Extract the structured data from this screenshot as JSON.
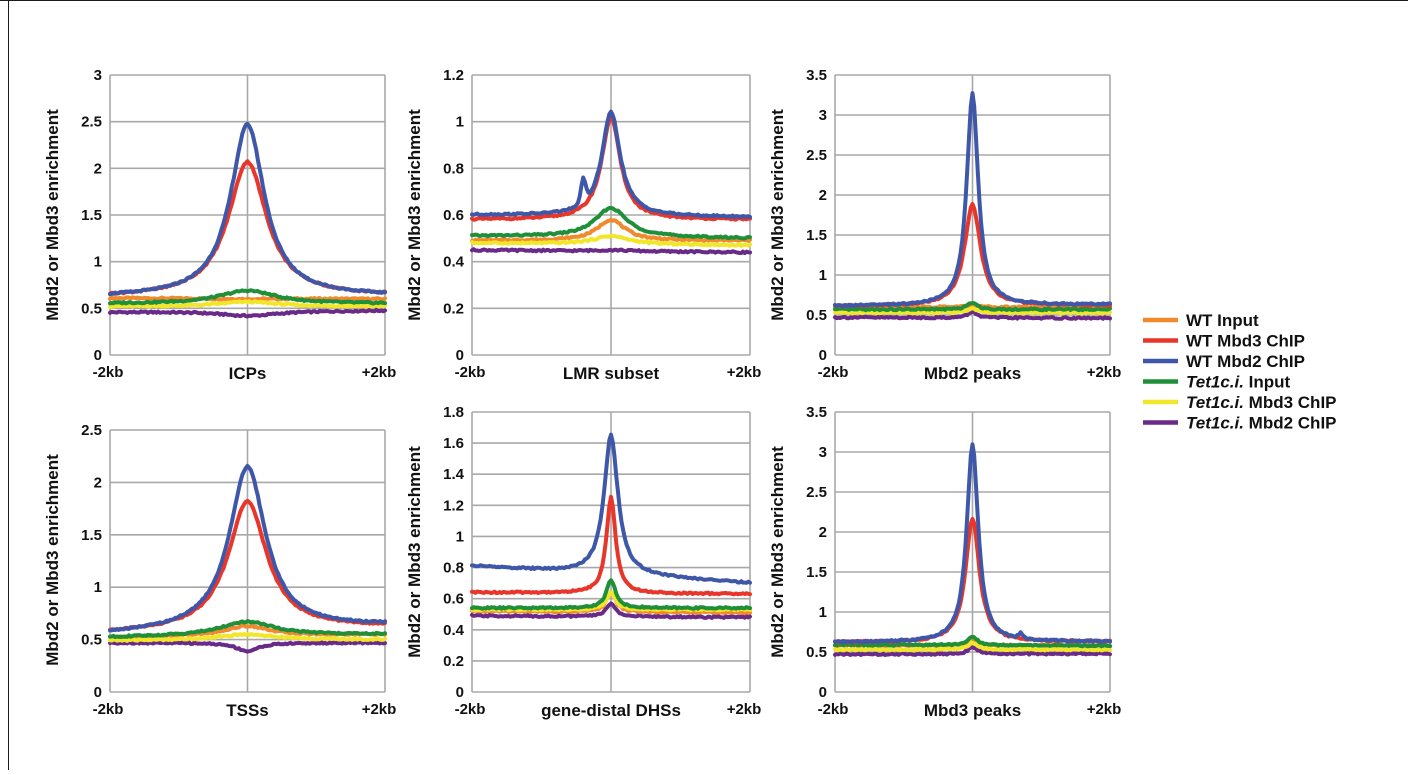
{
  "colors": {
    "wt_input": "#f08a2c",
    "wt_mbd3": "#e8362a",
    "wt_mbd2": "#3f57a8",
    "tet_input": "#1f8f3a",
    "tet_mbd3": "#f2e62a",
    "tet_mbd2": "#6a2a88",
    "grid": "#a8a8a8"
  },
  "legend": [
    {
      "key": "wt_input",
      "prefix": "",
      "italic": "",
      "rest": "WT Input"
    },
    {
      "key": "wt_mbd3",
      "prefix": "",
      "italic": "",
      "rest": "WT Mbd3 ChIP"
    },
    {
      "key": "wt_mbd2",
      "prefix": "",
      "italic": "",
      "rest": "WT Mbd2 ChIP"
    },
    {
      "key": "tet_input",
      "prefix": "",
      "italic": "Tet1c.i.",
      "rest": " Input"
    },
    {
      "key": "tet_mbd3",
      "prefix": "",
      "italic": "Tet1c.i.",
      "rest": " Mbd3 ChIP"
    },
    {
      "key": "tet_mbd2",
      "prefix": "",
      "italic": "Tet1c.i.",
      "rest": " Mbd2 ChIP"
    }
  ],
  "chart_data": [
    {
      "type": "line",
      "xlabel": "ICPs",
      "ylabel": "Mbd2 or Mbd3 enrichment",
      "x_left": "-2kb",
      "x_right": "+2kb",
      "ylim": [
        0,
        3
      ],
      "yticks": [
        "0",
        "0.5",
        "1",
        "1.5",
        "2",
        "2.5",
        "3"
      ],
      "grid": true,
      "series": {
        "wt_input": {
          "base": 0.6,
          "baseL": 0.61,
          "baseR": 0.6,
          "peak": 0.6,
          "width": 0.2
        },
        "wt_mbd3": {
          "baseL": 0.62,
          "baseR": 0.63,
          "peak": 2.07,
          "width": 0.17
        },
        "wt_mbd2": {
          "baseL": 0.62,
          "baseR": 0.63,
          "peak": 2.47,
          "width": 0.15
        },
        "tet_input": {
          "baseL": 0.55,
          "baseR": 0.55,
          "peak": 0.69,
          "width": 0.25
        },
        "tet_mbd3": {
          "baseL": 0.52,
          "baseR": 0.52,
          "peak": 0.57,
          "width": 0.25
        },
        "tet_mbd2": {
          "baseL": 0.46,
          "baseR": 0.48,
          "peak": 0.42,
          "width": 0.25
        }
      }
    },
    {
      "type": "line",
      "xlabel": "LMR subset",
      "ylabel": "Mbd2 or Mbd3 enrichment",
      "x_left": "-2kb",
      "x_right": "+2kb",
      "ylim": [
        0,
        1.2
      ],
      "yticks": [
        "0",
        "0.2",
        "0.4",
        "0.6",
        "0.8",
        "1",
        "1.2"
      ],
      "grid": true,
      "series": {
        "wt_input": {
          "baseL": 0.49,
          "baseR": 0.49,
          "peak": 0.58,
          "width": 0.12
        },
        "wt_mbd3": {
          "baseL": 0.58,
          "baseR": 0.58,
          "peak": 1.02,
          "width": 0.08
        },
        "wt_mbd2": {
          "baseL": 0.6,
          "baseR": 0.59,
          "peak": 1.04,
          "width": 0.08,
          "bump": [
            -0.2,
            0.1
          ]
        },
        "tet_input": {
          "baseL": 0.51,
          "baseR": 0.5,
          "peak": 0.63,
          "width": 0.14
        },
        "tet_mbd3": {
          "baseL": 0.48,
          "baseR": 0.47,
          "peak": 0.51,
          "width": 0.15
        },
        "tet_mbd2": {
          "baseL": 0.45,
          "baseR": 0.44,
          "peak": 0.45,
          "width": 0.15
        }
      }
    },
    {
      "type": "line",
      "xlabel": "Mbd2 peaks",
      "ylabel": "Mbd2 or Mbd3 enrichment",
      "x_left": "-2kb",
      "x_right": "+2kb",
      "ylim": [
        0,
        3.5
      ],
      "yticks": [
        "0",
        "0.5",
        "1",
        "1.5",
        "2",
        "2.5",
        "3",
        "3.5"
      ],
      "grid": true,
      "series": {
        "wt_input": {
          "baseL": 0.6,
          "baseR": 0.6,
          "peak": 0.62,
          "width": 0.05
        },
        "wt_mbd3": {
          "baseL": 0.61,
          "baseR": 0.62,
          "peak": 1.88,
          "width": 0.07
        },
        "wt_mbd2": {
          "baseL": 0.61,
          "baseR": 0.63,
          "peak": 3.27,
          "width": 0.05
        },
        "tet_input": {
          "baseL": 0.57,
          "baseR": 0.57,
          "peak": 0.66,
          "width": 0.04
        },
        "tet_mbd3": {
          "baseL": 0.53,
          "baseR": 0.53,
          "peak": 0.58,
          "width": 0.04
        },
        "tet_mbd2": {
          "baseL": 0.47,
          "baseR": 0.46,
          "peak": 0.54,
          "width": 0.04
        }
      }
    },
    {
      "type": "line",
      "xlabel": "TSSs",
      "ylabel": "Mbd2 or Mbd3 enrichment",
      "x_left": "-2kb",
      "x_right": "+2kb",
      "ylim": [
        0,
        2.5
      ],
      "yticks": [
        "0",
        "0.5",
        "1",
        "1.5",
        "2",
        "2.5"
      ],
      "grid": true,
      "series": {
        "wt_input": {
          "baseL": 0.52,
          "baseR": 0.55,
          "peak": 0.63,
          "width": 0.2
        },
        "wt_mbd3": {
          "baseL": 0.56,
          "baseR": 0.62,
          "peak": 1.82,
          "width": 0.17
        },
        "wt_mbd2": {
          "baseL": 0.55,
          "baseR": 0.63,
          "peak": 2.15,
          "width": 0.16
        },
        "tet_input": {
          "baseL": 0.52,
          "baseR": 0.55,
          "peak": 0.67,
          "width": 0.25
        },
        "tet_mbd3": {
          "baseL": 0.49,
          "baseR": 0.5,
          "peak": 0.55,
          "width": 0.25
        },
        "tet_mbd2": {
          "baseL": 0.47,
          "baseR": 0.47,
          "peak": 0.39,
          "width": 0.1
        }
      }
    },
    {
      "type": "line",
      "xlabel": "gene-distal DHSs",
      "ylabel": "Mbd2 or Mbd3 enrichment",
      "x_left": "-2kb",
      "x_right": "+2kb",
      "ylim": [
        0,
        1.8
      ],
      "yticks": [
        "0",
        "0.2",
        "0.4",
        "0.6",
        "0.8",
        "1",
        "1.2",
        "1.4",
        "1.6",
        "1.8"
      ],
      "grid": true,
      "series": {
        "wt_input": {
          "baseL": 0.52,
          "baseR": 0.51,
          "peak": 0.64,
          "width": 0.04
        },
        "wt_mbd3": {
          "baseL": 0.64,
          "baseR": 0.63,
          "peak": 1.25,
          "width": 0.04
        },
        "wt_mbd2": {
          "baseL": 0.81,
          "baseR": 0.7,
          "peak": 1.65,
          "width": 0.06
        },
        "tet_input": {
          "baseL": 0.54,
          "baseR": 0.54,
          "peak": 0.72,
          "width": 0.04
        },
        "tet_mbd3": {
          "baseL": 0.53,
          "baseR": 0.53,
          "peak": 0.64,
          "width": 0.04
        },
        "tet_mbd2": {
          "baseL": 0.49,
          "baseR": 0.48,
          "peak": 0.57,
          "width": 0.04
        }
      }
    },
    {
      "type": "line",
      "xlabel": "Mbd3 peaks",
      "ylabel": "Mbd2 or Mbd3 enrichment",
      "x_left": "-2kb",
      "x_right": "+2kb",
      "ylim": [
        0,
        3.5
      ],
      "yticks": [
        "0",
        "0.5",
        "1",
        "1.5",
        "2",
        "2.5",
        "3",
        "3.5"
      ],
      "grid": true,
      "series": {
        "wt_input": {
          "baseL": 0.58,
          "baseR": 0.58,
          "peak": 0.65,
          "width": 0.05
        },
        "wt_mbd3": {
          "baseL": 0.62,
          "baseR": 0.63,
          "peak": 2.17,
          "width": 0.06
        },
        "wt_mbd2": {
          "baseL": 0.62,
          "baseR": 0.63,
          "peak": 3.1,
          "width": 0.05,
          "bump": [
            0.35,
            0.06
          ]
        },
        "tet_input": {
          "baseL": 0.59,
          "baseR": 0.58,
          "peak": 0.7,
          "width": 0.04
        },
        "tet_mbd3": {
          "baseL": 0.53,
          "baseR": 0.53,
          "peak": 0.62,
          "width": 0.04
        },
        "tet_mbd2": {
          "baseL": 0.47,
          "baseR": 0.48,
          "peak": 0.56,
          "width": 0.04
        }
      }
    }
  ]
}
